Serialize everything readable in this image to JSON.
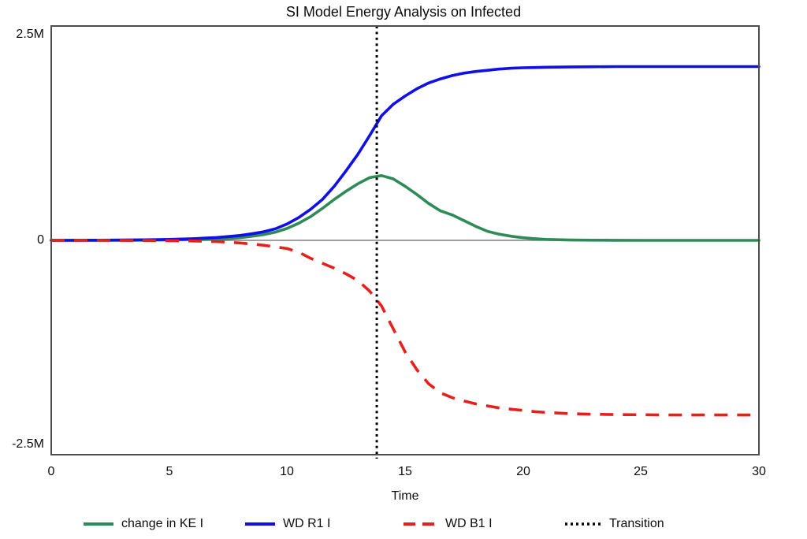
{
  "page": {
    "background": "#ffffff"
  },
  "chart_data": {
    "type": "line",
    "title": "SI Model Energy Analysis on Infected",
    "xlabel": "Time",
    "ylabel": "",
    "units": "series values in millions (M)",
    "xlim": [
      0,
      30
    ],
    "ylim_millions": [
      -2.615,
      2.615
    ],
    "grid": false,
    "legend_position": "bottom",
    "x_ticks": [
      0,
      5,
      10,
      15,
      20,
      25,
      30
    ],
    "x_tick_labels": [
      "0",
      "5",
      "10",
      "15",
      "20",
      "25",
      "30"
    ],
    "y_ticks_millions": [
      2.5,
      0,
      -2.5
    ],
    "y_tick_labels": [
      "2.5M",
      "0",
      "-2.5M"
    ],
    "border_color": "#4d4d4d",
    "zero_line_color": "#808080",
    "t": [
      0,
      1,
      2,
      3,
      4,
      5,
      6,
      7,
      7.5,
      8,
      8.5,
      9,
      9.5,
      10,
      10.5,
      11,
      11.5,
      12,
      12.5,
      13,
      13.5,
      14,
      14.5,
      15,
      15.5,
      16,
      16.5,
      17,
      17.5,
      18,
      18.5,
      19,
      19.5,
      20,
      20.5,
      21,
      22,
      23,
      24,
      25,
      26,
      27,
      28,
      29,
      30
    ],
    "series": [
      {
        "name": "change in KE I",
        "color": "#2e8b57",
        "style": "solid",
        "peak": {
          "t": 13.8,
          "value_millions": 0.79
        },
        "values": [
          0,
          0,
          0,
          0.001,
          0.002,
          0.004,
          0.008,
          0.015,
          0.022,
          0.032,
          0.05,
          0.07,
          0.1,
          0.145,
          0.21,
          0.29,
          0.39,
          0.5,
          0.6,
          0.69,
          0.765,
          0.79,
          0.75,
          0.66,
          0.56,
          0.45,
          0.36,
          0.31,
          0.24,
          0.17,
          0.11,
          0.075,
          0.05,
          0.032,
          0.02,
          0.012,
          0.004,
          0.002,
          0.001,
          0,
          0,
          0,
          0,
          0,
          0
        ]
      },
      {
        "name": "WD R1 I",
        "color": "#0f0fe6",
        "style": "solid",
        "plateau_millions": 2.12,
        "values": [
          0,
          0.001,
          0.002,
          0.004,
          0.007,
          0.012,
          0.02,
          0.035,
          0.046,
          0.06,
          0.08,
          0.105,
          0.14,
          0.2,
          0.28,
          0.38,
          0.5,
          0.66,
          0.85,
          1.05,
          1.28,
          1.52,
          1.66,
          1.76,
          1.85,
          1.92,
          1.97,
          2.01,
          2.04,
          2.06,
          2.075,
          2.09,
          2.1,
          2.105,
          2.108,
          2.112,
          2.116,
          2.118,
          2.12,
          2.12,
          2.12,
          2.12,
          2.12,
          2.12,
          2.12
        ]
      },
      {
        "name": "WD B1 I",
        "color": "#e8201c",
        "style": "dashed",
        "plateau_millions": -2.13,
        "values": [
          0,
          0,
          0,
          -0.001,
          -0.002,
          -0.004,
          -0.008,
          -0.015,
          -0.022,
          -0.032,
          -0.045,
          -0.06,
          -0.08,
          -0.1,
          -0.145,
          -0.22,
          -0.28,
          -0.34,
          -0.41,
          -0.49,
          -0.62,
          -0.8,
          -1.08,
          -1.36,
          -1.58,
          -1.75,
          -1.86,
          -1.92,
          -1.96,
          -1.995,
          -2.02,
          -2.045,
          -2.06,
          -2.075,
          -2.09,
          -2.1,
          -2.115,
          -2.122,
          -2.126,
          -2.128,
          -2.13,
          -2.13,
          -2.13,
          -2.13,
          -2.13
        ]
      }
    ],
    "transition": {
      "label": "Transition",
      "time": 13.8,
      "color": "#000000",
      "style": "dotted"
    }
  }
}
